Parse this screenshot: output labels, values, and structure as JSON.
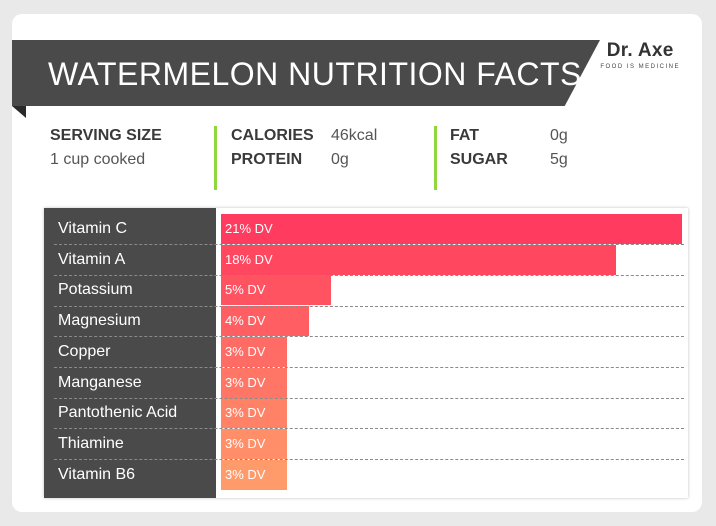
{
  "title": "WATERMELON NUTRITION FACTS",
  "brand": {
    "name": "Dr. Axe",
    "tagline": "FOOD IS MEDICINE"
  },
  "facts": {
    "serving": {
      "label": "SERVING SIZE",
      "value": "1 cup cooked"
    },
    "calories": {
      "label": "CALORIES",
      "value": "46kcal"
    },
    "protein": {
      "label": "PROTEIN",
      "value": "0g"
    },
    "fat": {
      "label": "FAT",
      "value": "0g"
    },
    "sugar": {
      "label": "SUGAR",
      "value": "5g"
    }
  },
  "colors": {
    "banner": "#4a4a4a",
    "divider": "#8fd63f",
    "bar_top": "#ff3b5f",
    "bar_bottom": "#ff9a6a"
  },
  "chart_data": {
    "type": "bar",
    "orientation": "horizontal",
    "categories": [
      "Vitamin C",
      "Vitamin A",
      "Potassium",
      "Magnesium",
      "Copper",
      "Manganese",
      "Pantothenic Acid",
      "Thiamine",
      "Vitamin B6"
    ],
    "values": [
      21,
      18,
      5,
      4,
      3,
      3,
      3,
      3,
      3
    ],
    "value_labels": [
      "21% DV",
      "18% DV",
      "5% DV",
      "4% DV",
      "3% DV",
      "3% DV",
      "3% DV",
      "3% DV",
      "3% DV"
    ],
    "unit": "% DV",
    "xlim": [
      0,
      21
    ]
  }
}
